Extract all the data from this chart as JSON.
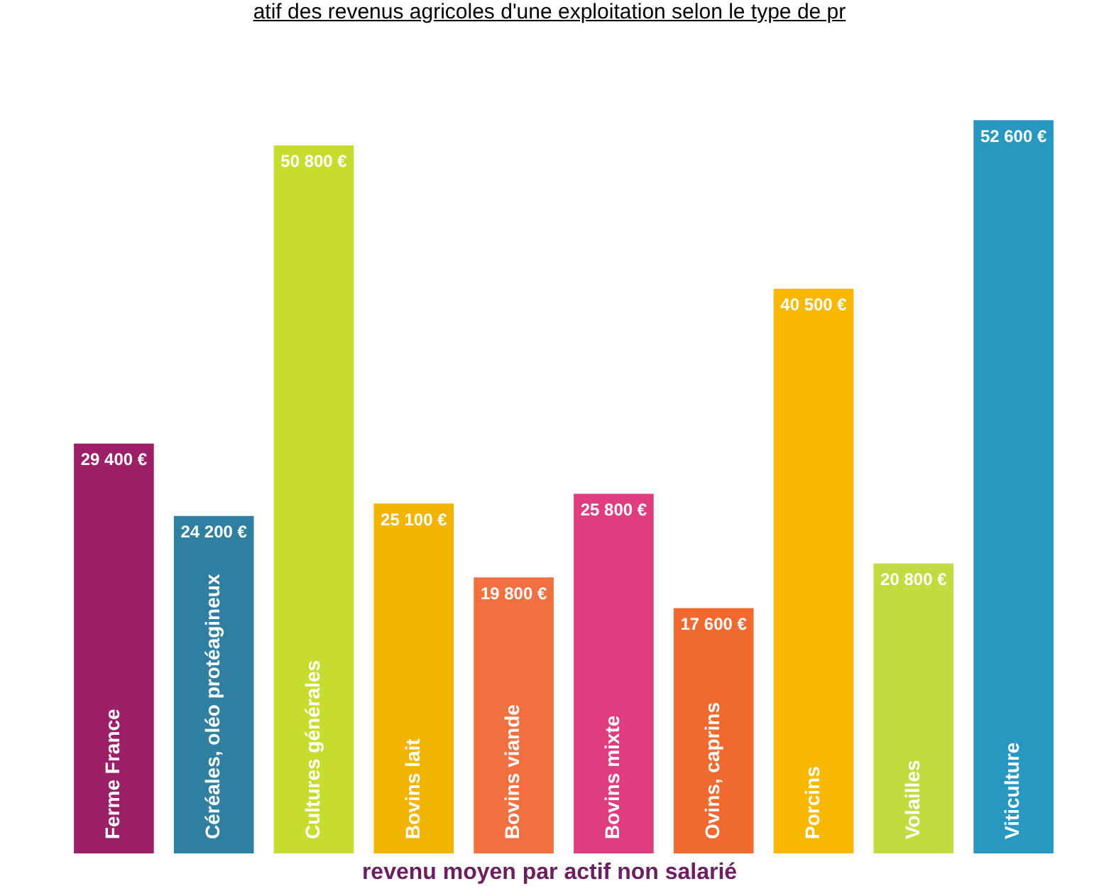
{
  "chart_data": {
    "type": "bar",
    "title": "atif des revenus agricoles d'une exploitation selon le type de pr",
    "xlabel": "revenu moyen par actif non salarié",
    "categories": [
      "Ferme France",
      "Céréales, oléo protéagineux",
      "Cultures générales",
      "Bovins lait",
      "Bovins viande",
      "Bovins mixte",
      "Ovins, caprins",
      "Porcins",
      "Volailles",
      "Viticulture"
    ],
    "values": [
      29400,
      24200,
      50800,
      25100,
      19800,
      25800,
      17600,
      40500,
      20800,
      52600
    ],
    "colors": [
      "#9b2068",
      "#2f7fa0",
      "#c8dc30",
      "#f2b400",
      "#f07040",
      "#e03c80",
      "#f06a30",
      "#f8b800",
      "#c0dc40",
      "#2898c0"
    ],
    "value_labels": [
      "29 400 €",
      "24 200 €",
      "50 800 €",
      "25 100 €",
      "19 800 €",
      "25 800 €",
      "17 600 €",
      "40 500 €",
      "20 800 €",
      "52 600 €"
    ],
    "legend": false
  }
}
